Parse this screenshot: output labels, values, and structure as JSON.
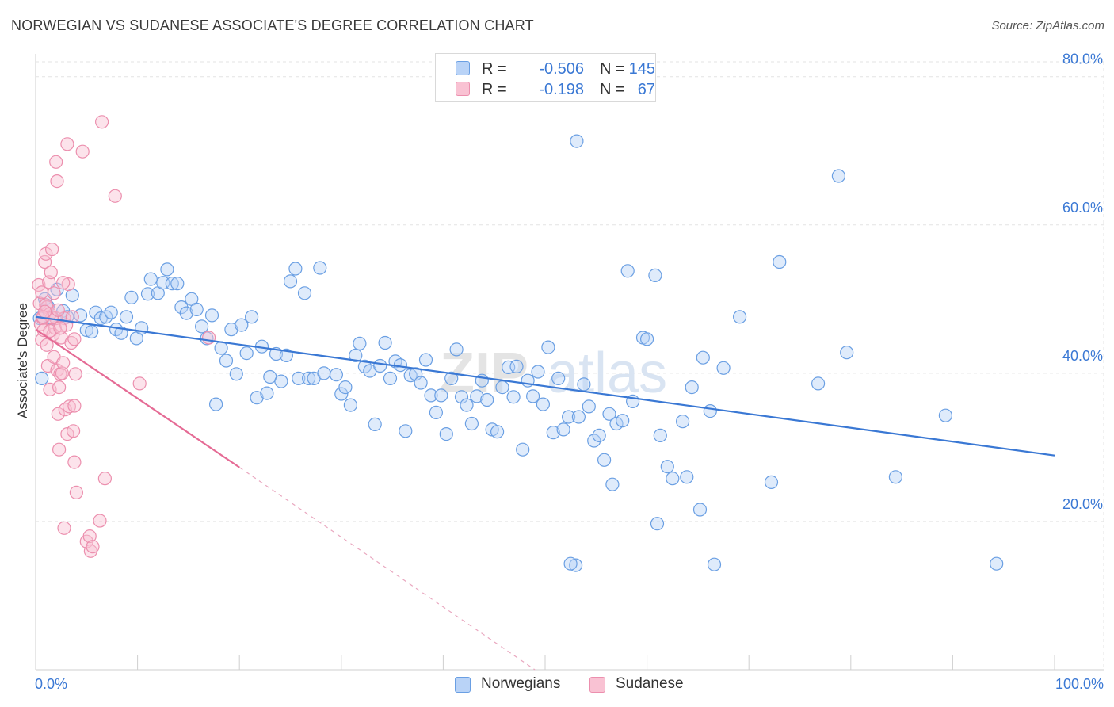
{
  "header": {
    "title": "NORWEGIAN VS SUDANESE ASSOCIATE'S DEGREE CORRELATION CHART",
    "source": "Source: ZipAtlas.com"
  },
  "legend": {
    "rows": [
      {
        "r_label": "R =",
        "r_value": "-0.506",
        "n_label": "N =",
        "n_value": "145",
        "fill": "#b9d3f7",
        "stroke": "#6a9fe3"
      },
      {
        "r_label": "R =",
        "r_value": "-0.198",
        "n_label": "N =",
        "n_value": "67",
        "fill": "#f9c2d3",
        "stroke": "#ec8fae"
      }
    ]
  },
  "bottom_legend": {
    "items": [
      {
        "label": "Norwegians",
        "fill": "#b9d3f7",
        "stroke": "#6a9fe3"
      },
      {
        "label": "Sudanese",
        "fill": "#f9c2d3",
        "stroke": "#ec8fae"
      }
    ]
  },
  "watermark": {
    "zip": "ZIP",
    "atlas": "atlas"
  },
  "chart_data": {
    "type": "scatter",
    "title": "NORWEGIAN VS SUDANESE ASSOCIATE'S DEGREE CORRELATION CHART",
    "xlabel": "",
    "ylabel": "Associate's Degree",
    "xlim": [
      0,
      100
    ],
    "ylim": [
      0,
      82
    ],
    "x_tick_labels": [
      "0.0%",
      "100.0%"
    ],
    "y_ticks": [
      20,
      40,
      60,
      80
    ],
    "y_tick_labels": [
      "20.0%",
      "40.0%",
      "60.0%",
      "80.0%"
    ],
    "grid": true,
    "legend_position": "top-center",
    "colors": {
      "norwegians": "#3a78d4",
      "sudanese": "#e56b95"
    },
    "series": [
      {
        "name": "Norwegians",
        "points": [
          [
            0.4,
            47.4
          ],
          [
            0.6,
            39.3
          ],
          [
            0.9,
            50.0
          ],
          [
            1.2,
            49.0
          ],
          [
            1.6,
            47.4
          ],
          [
            2.1,
            51.3
          ],
          [
            2.7,
            48.4
          ],
          [
            3.1,
            47.6
          ],
          [
            3.6,
            50.5
          ],
          [
            4.4,
            47.8
          ],
          [
            5.0,
            45.8
          ],
          [
            5.5,
            45.6
          ],
          [
            5.9,
            48.2
          ],
          [
            6.4,
            47.4
          ],
          [
            6.9,
            47.6
          ],
          [
            7.4,
            48.2
          ],
          [
            7.9,
            45.9
          ],
          [
            8.4,
            45.4
          ],
          [
            8.9,
            47.6
          ],
          [
            9.4,
            50.2
          ],
          [
            9.9,
            44.7
          ],
          [
            10.4,
            46.1
          ],
          [
            11.0,
            50.7
          ],
          [
            11.3,
            52.7
          ],
          [
            12.0,
            50.8
          ],
          [
            12.5,
            52.2
          ],
          [
            12.9,
            54.0
          ],
          [
            13.4,
            52.1
          ],
          [
            13.9,
            52.1
          ],
          [
            14.3,
            48.9
          ],
          [
            14.8,
            48.1
          ],
          [
            15.3,
            50.0
          ],
          [
            15.8,
            48.6
          ],
          [
            16.3,
            46.3
          ],
          [
            16.8,
            44.7
          ],
          [
            17.3,
            47.8
          ],
          [
            17.7,
            35.8
          ],
          [
            18.2,
            43.4
          ],
          [
            18.7,
            41.7
          ],
          [
            19.2,
            45.9
          ],
          [
            19.7,
            39.9
          ],
          [
            20.2,
            46.5
          ],
          [
            20.7,
            42.7
          ],
          [
            21.2,
            47.6
          ],
          [
            21.7,
            36.7
          ],
          [
            22.2,
            43.6
          ],
          [
            22.7,
            37.3
          ],
          [
            23.0,
            39.5
          ],
          [
            23.6,
            42.6
          ],
          [
            24.1,
            38.9
          ],
          [
            24.6,
            42.4
          ],
          [
            25.0,
            52.4
          ],
          [
            25.5,
            54.1
          ],
          [
            25.8,
            39.3
          ],
          [
            26.4,
            50.8
          ],
          [
            26.8,
            39.3
          ],
          [
            27.3,
            39.3
          ],
          [
            27.9,
            54.2
          ],
          [
            28.3,
            40.0
          ],
          [
            29.5,
            39.8
          ],
          [
            30.0,
            37.2
          ],
          [
            30.4,
            38.1
          ],
          [
            30.9,
            35.7
          ],
          [
            31.4,
            42.4
          ],
          [
            31.8,
            44.0
          ],
          [
            32.3,
            40.9
          ],
          [
            32.8,
            40.3
          ],
          [
            33.3,
            33.1
          ],
          [
            33.8,
            41.0
          ],
          [
            34.3,
            44.1
          ],
          [
            34.8,
            39.3
          ],
          [
            35.3,
            41.6
          ],
          [
            35.8,
            41.1
          ],
          [
            36.3,
            32.2
          ],
          [
            36.8,
            39.7
          ],
          [
            37.3,
            39.9
          ],
          [
            37.8,
            38.7
          ],
          [
            38.3,
            41.8
          ],
          [
            38.8,
            37.0
          ],
          [
            39.3,
            34.7
          ],
          [
            39.8,
            37.0
          ],
          [
            40.3,
            31.8
          ],
          [
            40.8,
            39.3
          ],
          [
            41.3,
            43.2
          ],
          [
            41.8,
            36.8
          ],
          [
            42.3,
            35.7
          ],
          [
            42.8,
            33.2
          ],
          [
            43.3,
            36.9
          ],
          [
            43.8,
            39.0
          ],
          [
            44.3,
            36.4
          ],
          [
            44.8,
            32.4
          ],
          [
            45.3,
            32.1
          ],
          [
            45.8,
            38.1
          ],
          [
            46.4,
            40.8
          ],
          [
            46.9,
            36.8
          ],
          [
            47.2,
            40.9
          ],
          [
            47.8,
            29.7
          ],
          [
            48.3,
            39.0
          ],
          [
            48.8,
            36.9
          ],
          [
            49.3,
            40.2
          ],
          [
            49.8,
            35.8
          ],
          [
            50.3,
            43.5
          ],
          [
            50.8,
            32.0
          ],
          [
            51.3,
            39.3
          ],
          [
            51.8,
            32.4
          ],
          [
            52.3,
            34.1
          ],
          [
            53.3,
            34.1
          ],
          [
            53.8,
            38.5
          ],
          [
            54.3,
            35.5
          ],
          [
            54.8,
            30.9
          ],
          [
            55.3,
            31.6
          ],
          [
            55.8,
            28.3
          ],
          [
            56.3,
            34.5
          ],
          [
            57.0,
            33.2
          ],
          [
            57.6,
            33.6
          ],
          [
            58.1,
            53.8
          ],
          [
            58.6,
            36.2
          ],
          [
            59.6,
            44.8
          ],
          [
            60.0,
            44.6
          ],
          [
            60.8,
            53.2
          ],
          [
            61.3,
            31.6
          ],
          [
            62.0,
            27.4
          ],
          [
            62.5,
            25.8
          ],
          [
            63.5,
            33.5
          ],
          [
            63.9,
            26.0
          ],
          [
            64.4,
            38.1
          ],
          [
            65.2,
            21.6
          ],
          [
            65.5,
            42.1
          ],
          [
            66.2,
            34.9
          ],
          [
            67.5,
            40.7
          ],
          [
            69.1,
            47.6
          ],
          [
            72.2,
            25.3
          ],
          [
            73.0,
            55.0
          ],
          [
            76.8,
            38.6
          ],
          [
            79.6,
            42.8
          ],
          [
            84.4,
            26.0
          ],
          [
            89.3,
            34.3
          ],
          [
            61.0,
            19.7
          ],
          [
            53.1,
            71.3
          ],
          [
            56.6,
            25.0
          ],
          [
            78.8,
            66.6
          ],
          [
            94.3,
            14.3
          ],
          [
            53.0,
            14.1
          ],
          [
            66.6,
            14.2
          ],
          [
            52.5,
            14.3
          ]
        ],
        "trend": {
          "x": [
            0,
            100
          ],
          "y": [
            47.6,
            28.9
          ],
          "style": "solid"
        }
      },
      {
        "name": "Sudanese",
        "points": [
          [
            0.3,
            51.9
          ],
          [
            0.4,
            49.4
          ],
          [
            0.5,
            46.6
          ],
          [
            0.6,
            44.5
          ],
          [
            0.7,
            47.4
          ],
          [
            0.8,
            45.8
          ],
          [
            0.9,
            55.0
          ],
          [
            1.0,
            56.1
          ],
          [
            1.1,
            48.9
          ],
          [
            1.2,
            41.0
          ],
          [
            1.3,
            52.3
          ],
          [
            1.4,
            37.8
          ],
          [
            1.5,
            53.6
          ],
          [
            1.6,
            56.7
          ],
          [
            1.7,
            45.2
          ],
          [
            1.8,
            42.2
          ],
          [
            1.9,
            46.1
          ],
          [
            2.0,
            47.4
          ],
          [
            2.1,
            40.4
          ],
          [
            2.2,
            34.5
          ],
          [
            2.3,
            38.1
          ],
          [
            2.4,
            39.9
          ],
          [
            2.5,
            44.8
          ],
          [
            2.6,
            40.0
          ],
          [
            2.7,
            41.4
          ],
          [
            2.8,
            47.4
          ],
          [
            2.9,
            35.1
          ],
          [
            3.0,
            46.5
          ],
          [
            3.1,
            31.8
          ],
          [
            3.2,
            52.0
          ],
          [
            3.3,
            35.5
          ],
          [
            3.5,
            44.1
          ],
          [
            3.6,
            47.6
          ],
          [
            3.8,
            35.6
          ],
          [
            3.9,
            39.9
          ],
          [
            1.4,
            45.7
          ],
          [
            1.8,
            50.8
          ],
          [
            2.3,
            29.7
          ],
          [
            3.7,
            32.2
          ],
          [
            3.8,
            44.6
          ],
          [
            2.0,
            68.5
          ],
          [
            2.1,
            65.9
          ],
          [
            3.1,
            70.9
          ],
          [
            4.6,
            69.9
          ],
          [
            6.5,
            73.9
          ],
          [
            7.8,
            63.9
          ],
          [
            10.2,
            38.6
          ],
          [
            6.8,
            25.8
          ],
          [
            3.8,
            28.0
          ],
          [
            4.0,
            23.9
          ],
          [
            2.8,
            19.1
          ],
          [
            6.3,
            20.1
          ],
          [
            5.0,
            17.3
          ],
          [
            5.3,
            18.0
          ],
          [
            5.4,
            16.0
          ],
          [
            5.6,
            16.6
          ],
          [
            0.6,
            50.9
          ],
          [
            1.0,
            49.2
          ],
          [
            1.4,
            48.0
          ],
          [
            1.6,
            47.5
          ],
          [
            2.2,
            48.5
          ],
          [
            2.4,
            46.1
          ],
          [
            2.7,
            52.2
          ],
          [
            0.7,
            47.6
          ],
          [
            0.9,
            48.3
          ],
          [
            1.1,
            43.8
          ],
          [
            17.0,
            44.8
          ]
        ],
        "trend": {
          "x": [
            0,
            20,
            49
          ],
          "y": [
            45.9,
            27.3,
            0.0
          ],
          "style": "solid-then-dashed"
        }
      }
    ]
  }
}
